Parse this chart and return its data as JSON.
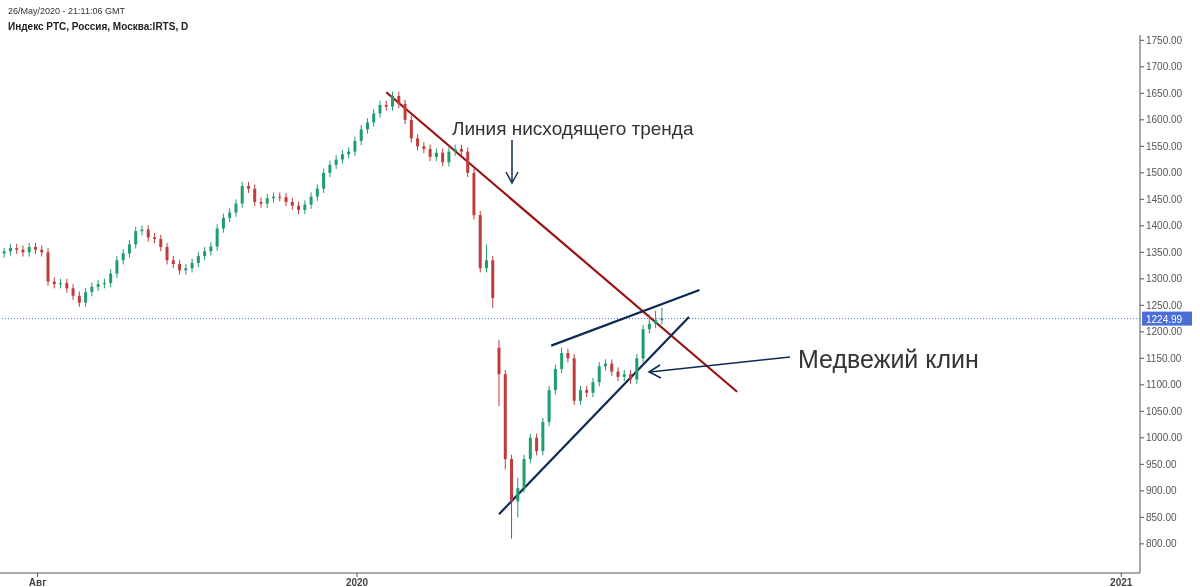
{
  "chart_data": {
    "type": "candlestick",
    "title": "Индекс РТС, Россия, Москва:IRTS, D",
    "subtitle": "26/May/2020 - 21:11:06 GMT",
    "annotations": [
      "Линия нисходящего тренда",
      "Медвежий клин"
    ],
    "xlim": [
      "2019-07-14",
      "2021-01-10"
    ],
    "xticks": [
      {
        "value": "2019-08-01",
        "label": "Авг"
      },
      {
        "value": "2020-01-01",
        "label": "2020"
      },
      {
        "value": "2021-01-01",
        "label": "2021"
      }
    ],
    "ylim": [
      745,
      1760
    ],
    "yticks": [
      {
        "value": 800,
        "label": "800.00"
      },
      {
        "value": 850,
        "label": "850.00"
      },
      {
        "value": 900,
        "label": "900.00"
      },
      {
        "value": 950,
        "label": "950.00"
      },
      {
        "value": 1000,
        "label": "1000.00"
      },
      {
        "value": 1050,
        "label": "1050.00"
      },
      {
        "value": 1100,
        "label": "1100.00"
      },
      {
        "value": 1150,
        "label": "1150.00"
      },
      {
        "value": 1200,
        "label": "1200.00"
      },
      {
        "value": 1250,
        "label": "1250.00"
      },
      {
        "value": 1300,
        "label": "1300.00"
      },
      {
        "value": 1350,
        "label": "1350.00"
      },
      {
        "value": 1400,
        "label": "1400.00"
      },
      {
        "value": 1450,
        "label": "1450.00"
      },
      {
        "value": 1500,
        "label": "1500.00"
      },
      {
        "value": 1550,
        "label": "1550.00"
      },
      {
        "value": 1600,
        "label": "1600.00"
      },
      {
        "value": 1650,
        "label": "1650.00"
      },
      {
        "value": 1700,
        "label": "1700.00"
      },
      {
        "value": 1750,
        "label": "1750.00"
      }
    ],
    "ref_lines": [
      {
        "axis": "y",
        "value": 1224.99,
        "label": "1224.99",
        "color": "#4a6fd8",
        "line_style": "dotted"
      }
    ],
    "series": [
      {
        "x": [
          "2019-07-16",
          "2019-07-19",
          "2019-07-22",
          "2019-07-25",
          "2019-07-28",
          "2019-07-31",
          "2019-08-03",
          "2019-08-06",
          "2019-08-09",
          "2019-08-12",
          "2019-08-15",
          "2019-08-18",
          "2019-08-21",
          "2019-08-24",
          "2019-08-27",
          "2019-08-30",
          "2019-09-02",
          "2019-09-05",
          "2019-09-08",
          "2019-09-11",
          "2019-09-14",
          "2019-09-17",
          "2019-09-20",
          "2019-09-23",
          "2019-09-26",
          "2019-09-29",
          "2019-10-02",
          "2019-10-05",
          "2019-10-08",
          "2019-10-11",
          "2019-10-14",
          "2019-10-17",
          "2019-10-20",
          "2019-10-23",
          "2019-10-26",
          "2019-10-29",
          "2019-11-01",
          "2019-11-04",
          "2019-11-07",
          "2019-11-10",
          "2019-11-13",
          "2019-11-16",
          "2019-11-19",
          "2019-11-22",
          "2019-11-25",
          "2019-11-28",
          "2019-12-01",
          "2019-12-04",
          "2019-12-07",
          "2019-12-10",
          "2019-12-13",
          "2019-12-16",
          "2019-12-19",
          "2019-12-22",
          "2019-12-25",
          "2019-12-28",
          "2019-12-31",
          "2020-01-03",
          "2020-01-06",
          "2020-01-09",
          "2020-01-12",
          "2020-01-15",
          "2020-01-18",
          "2020-01-21",
          "2020-01-24",
          "2020-01-27",
          "2020-01-30",
          "2020-02-02",
          "2020-02-05",
          "2020-02-08",
          "2020-02-11",
          "2020-02-14",
          "2020-02-17",
          "2020-02-20",
          "2020-02-23",
          "2020-02-26",
          "2020-02-29",
          "2020-03-03",
          "2020-03-06",
          "2020-03-09",
          "2020-03-12",
          "2020-03-15",
          "2020-03-18",
          "2020-03-21",
          "2020-03-24",
          "2020-03-27",
          "2020-03-30",
          "2020-04-02",
          "2020-04-05",
          "2020-04-08",
          "2020-04-11",
          "2020-04-14",
          "2020-04-17",
          "2020-04-20",
          "2020-04-23",
          "2020-04-26",
          "2020-04-29",
          "2020-05-02",
          "2020-05-05",
          "2020-05-08",
          "2020-05-11",
          "2020-05-14",
          "2020-05-17",
          "2020-05-20",
          "2020-05-23",
          "2020-05-26"
        ],
        "ohlc": [
          [
            1348,
            1358,
            1340,
            1352
          ],
          [
            1352,
            1366,
            1344,
            1358
          ],
          [
            1358,
            1366,
            1347,
            1355
          ],
          [
            1355,
            1363,
            1342,
            1350
          ],
          [
            1350,
            1368,
            1342,
            1360
          ],
          [
            1360,
            1368,
            1347,
            1355
          ],
          [
            1355,
            1363,
            1342,
            1350
          ],
          [
            1350,
            1358,
            1287,
            1295
          ],
          [
            1295,
            1303,
            1282,
            1290
          ],
          [
            1290,
            1300,
            1282,
            1292
          ],
          [
            1292,
            1300,
            1274,
            1282
          ],
          [
            1282,
            1290,
            1260,
            1268
          ],
          [
            1268,
            1276,
            1247,
            1255
          ],
          [
            1255,
            1283,
            1247,
            1275
          ],
          [
            1275,
            1293,
            1267,
            1285
          ],
          [
            1285,
            1298,
            1277,
            1290
          ],
          [
            1290,
            1300,
            1282,
            1292
          ],
          [
            1292,
            1318,
            1284,
            1310
          ],
          [
            1310,
            1343,
            1302,
            1335
          ],
          [
            1335,
            1356,
            1327,
            1348
          ],
          [
            1348,
            1373,
            1340,
            1365
          ],
          [
            1365,
            1398,
            1357,
            1390
          ],
          [
            1390,
            1401,
            1382,
            1393
          ],
          [
            1393,
            1401,
            1370,
            1378
          ],
          [
            1378,
            1386,
            1367,
            1375
          ],
          [
            1375,
            1383,
            1352,
            1360
          ],
          [
            1360,
            1368,
            1327,
            1335
          ],
          [
            1335,
            1343,
            1320,
            1328
          ],
          [
            1328,
            1336,
            1308,
            1316
          ],
          [
            1316,
            1328,
            1308,
            1320
          ],
          [
            1320,
            1338,
            1312,
            1330
          ],
          [
            1330,
            1351,
            1322,
            1343
          ],
          [
            1343,
            1360,
            1335,
            1352
          ],
          [
            1352,
            1369,
            1344,
            1361
          ],
          [
            1361,
            1403,
            1353,
            1395
          ],
          [
            1395,
            1423,
            1387,
            1415
          ],
          [
            1415,
            1433,
            1407,
            1425
          ],
          [
            1425,
            1450,
            1417,
            1442
          ],
          [
            1442,
            1483,
            1434,
            1475
          ],
          [
            1475,
            1483,
            1462,
            1470
          ],
          [
            1470,
            1478,
            1437,
            1445
          ],
          [
            1445,
            1453,
            1434,
            1442
          ],
          [
            1442,
            1460,
            1434,
            1452
          ],
          [
            1452,
            1463,
            1444,
            1455
          ],
          [
            1455,
            1463,
            1446,
            1454
          ],
          [
            1454,
            1462,
            1437,
            1445
          ],
          [
            1445,
            1453,
            1430,
            1438
          ],
          [
            1438,
            1446,
            1422,
            1430
          ],
          [
            1430,
            1448,
            1422,
            1440
          ],
          [
            1440,
            1463,
            1432,
            1455
          ],
          [
            1455,
            1478,
            1447,
            1470
          ],
          [
            1470,
            1508,
            1462,
            1500
          ],
          [
            1500,
            1523,
            1492,
            1515
          ],
          [
            1515,
            1533,
            1507,
            1525
          ],
          [
            1525,
            1543,
            1517,
            1535
          ],
          [
            1535,
            1548,
            1527,
            1540
          ],
          [
            1540,
            1568,
            1532,
            1560
          ],
          [
            1560,
            1590,
            1552,
            1582
          ],
          [
            1582,
            1603,
            1574,
            1595
          ],
          [
            1595,
            1620,
            1587,
            1612
          ],
          [
            1612,
            1636,
            1604,
            1628
          ],
          [
            1628,
            1636,
            1617,
            1625
          ],
          [
            1625,
            1653,
            1617,
            1645
          ],
          [
            1645,
            1653,
            1622,
            1630
          ],
          [
            1630,
            1638,
            1592,
            1600
          ],
          [
            1600,
            1608,
            1557,
            1565
          ],
          [
            1565,
            1573,
            1542,
            1550
          ],
          [
            1550,
            1558,
            1537,
            1545
          ],
          [
            1545,
            1553,
            1522,
            1530
          ],
          [
            1530,
            1546,
            1522,
            1538
          ],
          [
            1538,
            1546,
            1512,
            1520
          ],
          [
            1520,
            1548,
            1512,
            1540
          ],
          [
            1540,
            1553,
            1532,
            1545
          ],
          [
            1545,
            1553,
            1532,
            1540
          ],
          [
            1540,
            1548,
            1492,
            1500
          ],
          [
            1500,
            1508,
            1412,
            1420
          ],
          [
            1420,
            1428,
            1312,
            1320
          ],
          [
            1320,
            1365,
            1312,
            1335
          ],
          [
            1335,
            1343,
            1245,
            1264
          ],
          [
            1170,
            1185,
            1060,
            1120
          ],
          [
            1120,
            1128,
            940,
            960
          ],
          [
            960,
            968,
            810,
            880
          ],
          [
            880,
            925,
            850,
            905
          ],
          [
            905,
            968,
            897,
            960
          ],
          [
            960,
            1008,
            952,
            1000
          ],
          [
            1000,
            1008,
            967,
            975
          ],
          [
            975,
            1038,
            967,
            1030
          ],
          [
            1030,
            1098,
            1022,
            1090
          ],
          [
            1090,
            1138,
            1082,
            1130
          ],
          [
            1130,
            1170,
            1122,
            1160
          ],
          [
            1160,
            1168,
            1142,
            1150
          ],
          [
            1150,
            1158,
            1062,
            1070
          ],
          [
            1070,
            1098,
            1062,
            1090
          ],
          [
            1090,
            1098,
            1077,
            1085
          ],
          [
            1085,
            1113,
            1077,
            1105
          ],
          [
            1105,
            1143,
            1097,
            1135
          ],
          [
            1135,
            1148,
            1127,
            1140
          ],
          [
            1140,
            1148,
            1117,
            1125
          ],
          [
            1125,
            1133,
            1107,
            1115
          ],
          [
            1115,
            1128,
            1107,
            1120
          ],
          [
            1120,
            1128,
            1102,
            1110
          ],
          [
            1110,
            1158,
            1102,
            1150
          ],
          [
            1150,
            1213,
            1142,
            1205
          ],
          [
            1205,
            1233,
            1197,
            1215
          ],
          [
            1215,
            1240,
            1207,
            1222
          ],
          [
            1222,
            1245,
            1214,
            1225
          ]
        ],
        "colors": [
          "#1e9e6a",
          "#1e9e6a",
          "#c23b3b",
          "#c23b3b",
          "#1e9e6a",
          "#c23b3b",
          "#c23b3b",
          "#c23b3b",
          "#c23b3b",
          "#1e9e6a",
          "#c23b3b",
          "#c23b3b",
          "#c23b3b",
          "#1e9e6a",
          "#1e9e6a",
          "#1e9e6a",
          "#1e9e6a",
          "#1e9e6a",
          "#1e9e6a",
          "#1e9e6a",
          "#1e9e6a",
          "#1e9e6a",
          "#1e9e6a",
          "#c23b3b",
          "#c23b3b",
          "#c23b3b",
          "#c23b3b",
          "#c23b3b",
          "#c23b3b",
          "#1e9e6a",
          "#1e9e6a",
          "#1e9e6a",
          "#1e9e6a",
          "#1e9e6a",
          "#1e9e6a",
          "#1e9e6a",
          "#1e9e6a",
          "#1e9e6a",
          "#1e9e6a",
          "#c23b3b",
          "#c23b3b",
          "#c23b3b",
          "#1e9e6a",
          "#1e9e6a",
          "#c23b3b",
          "#c23b3b",
          "#c23b3b",
          "#c23b3b",
          "#1e9e6a",
          "#1e9e6a",
          "#1e9e6a",
          "#1e9e6a",
          "#1e9e6a",
          "#1e9e6a",
          "#1e9e6a",
          "#1e9e6a",
          "#1e9e6a",
          "#1e9e6a",
          "#1e9e6a",
          "#1e9e6a",
          "#1e9e6a",
          "#c23b3b",
          "#1e9e6a",
          "#c23b3b",
          "#c23b3b",
          "#c23b3b",
          "#c23b3b",
          "#c23b3b",
          "#c23b3b",
          "#1e9e6a",
          "#c23b3b",
          "#1e9e6a",
          "#1e9e6a",
          "#c23b3b",
          "#c23b3b",
          "#c23b3b",
          "#c23b3b",
          "#1e9e6a",
          "#c23b3b",
          "#c23b3b",
          "#c23b3b",
          "#c23b3b",
          "#1e9e6a",
          "#1e9e6a",
          "#1e9e6a",
          "#c23b3b",
          "#1e9e6a",
          "#1e9e6a",
          "#1e9e6a",
          "#1e9e6a",
          "#c23b3b",
          "#c23b3b",
          "#1e9e6a",
          "#c23b3b",
          "#1e9e6a",
          "#1e9e6a",
          "#1e9e6a",
          "#c23b3b",
          "#c23b3b",
          "#1e9e6a",
          "#c23b3b",
          "#1e9e6a",
          "#1e9e6a",
          "#1e9e6a",
          "#1e9e6a",
          "#1e9e6a"
        ]
      },
      {
        "type": "line",
        "color": "#9b1010",
        "x": [
          "2020-01-15",
          "2020-07-01"
        ],
        "values": [
          1652,
          1087
        ]
      },
      {
        "type": "line",
        "color": "#0d2b52",
        "x": [
          "2020-04-03",
          "2020-06-13"
        ],
        "values": [
          1174,
          1279
        ]
      },
      {
        "type": "line",
        "color": "#0d2b52",
        "x": [
          "2020-03-09",
          "2020-06-08"
        ],
        "values": [
          856,
          1228
        ]
      }
    ]
  }
}
